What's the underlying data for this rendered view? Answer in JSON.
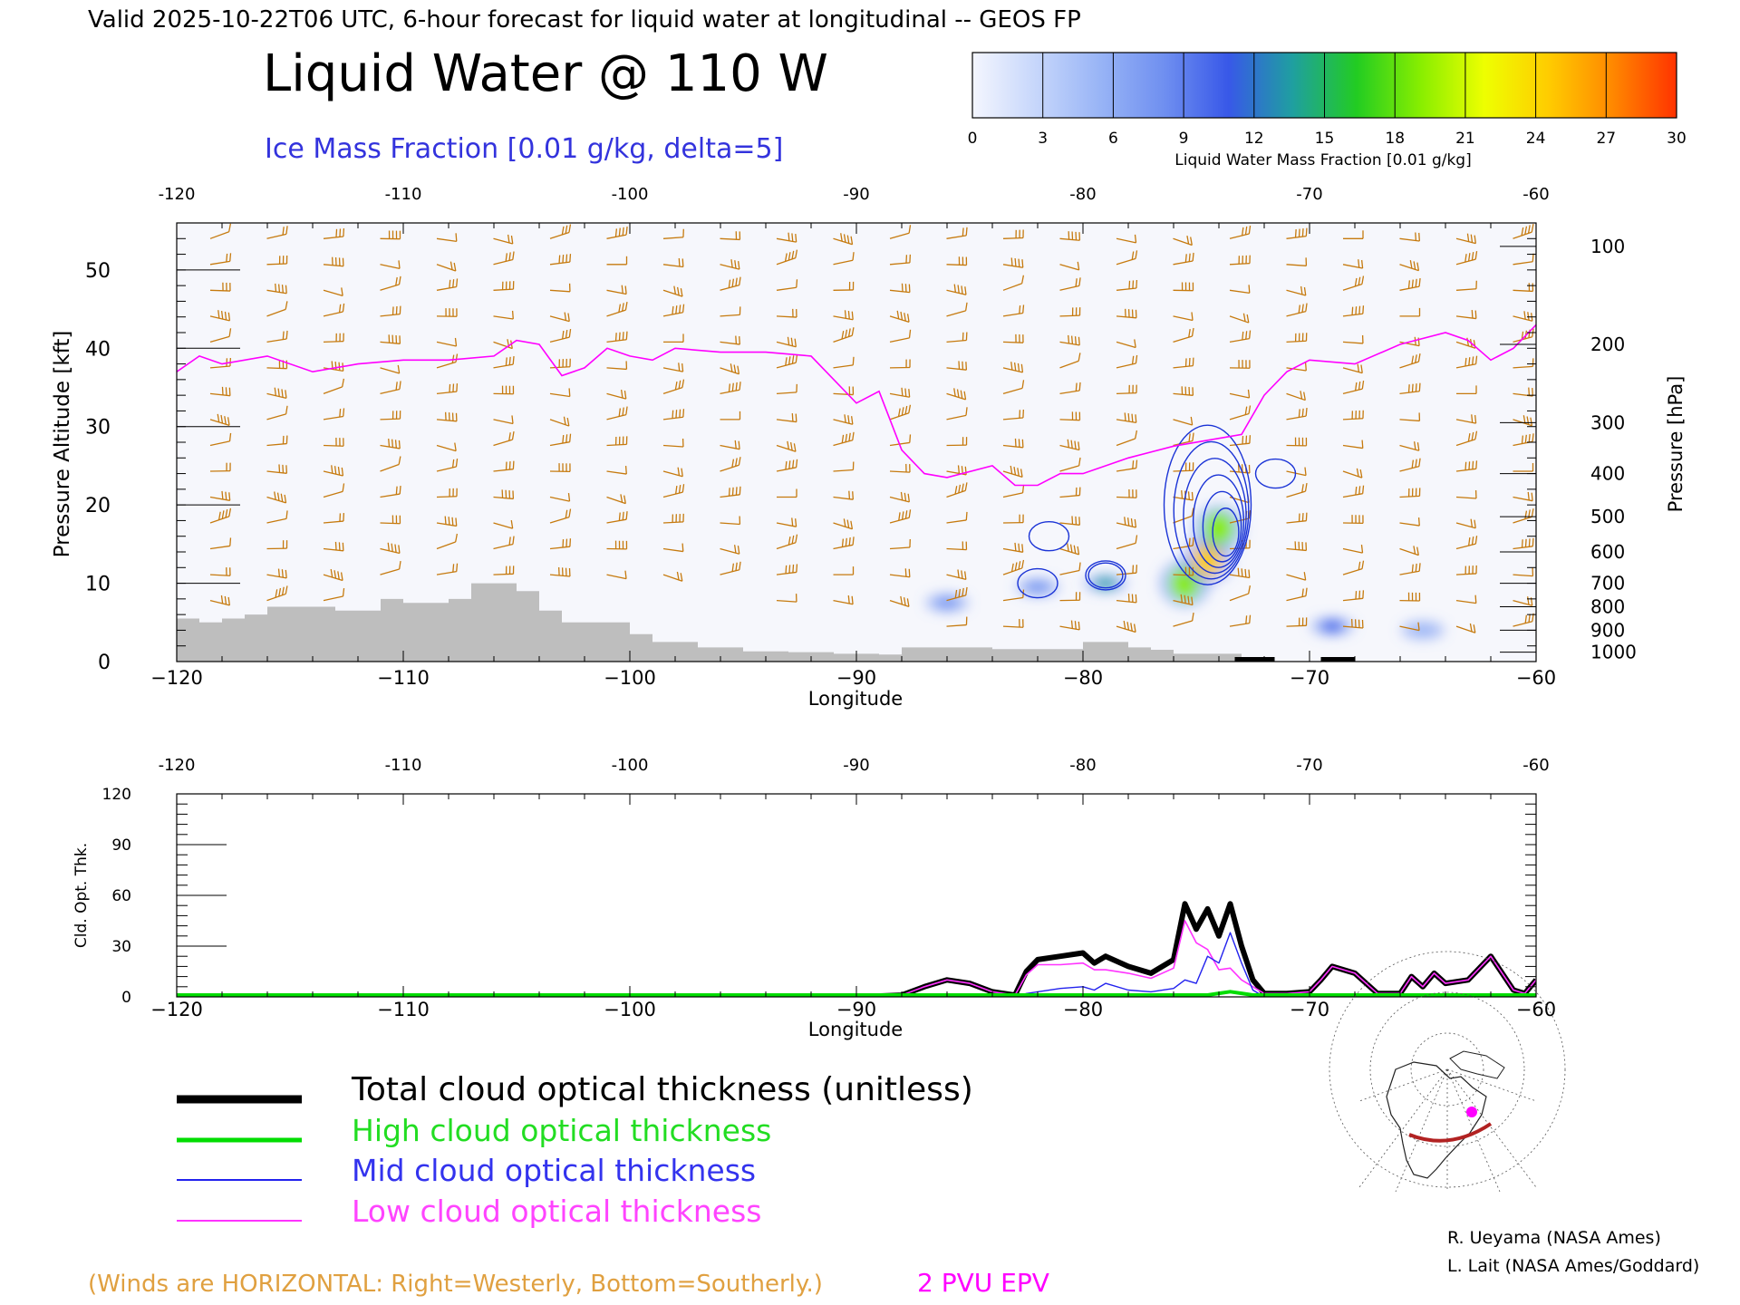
{
  "header": {
    "valid_line": "Valid 2025-10-22T06 UTC, 6-hour forecast for liquid water at longitudinal -- GEOS FP",
    "title": "Liquid Water @ 110 W",
    "subtitle": "Ice Mass Fraction [0.01 g/kg, delta=5]"
  },
  "colorbar": {
    "label": "Liquid Water Mass Fraction [0.01 g/kg]",
    "ticks": [
      "0",
      "3",
      "6",
      "9",
      "12",
      "15",
      "18",
      "21",
      "24",
      "27",
      "30"
    ],
    "colors": [
      "#f4f6fe",
      "#c6d6fb",
      "#98b4f6",
      "#6f8ff0",
      "#3858e8",
      "#1f9fa0",
      "#22cc22",
      "#88ee00",
      "#eeff00",
      "#ffcc00",
      "#ff8800",
      "#ff3300"
    ]
  },
  "colors": {
    "wind_barb": "#c67a0e",
    "pv_line": "#ff00ff",
    "ice_contour": "#1a33d6",
    "terrain": "#bebebe",
    "total": "#000000",
    "high": "#00dd00",
    "mid": "#2222ee",
    "low": "#ff33ff"
  },
  "top_panel": {
    "xticks_top": [
      "-120",
      "-110",
      "-100",
      "-90",
      "-80",
      "-70",
      "-60"
    ],
    "xticks_bottom": [
      "−120",
      "−110",
      "−100",
      "−90",
      "−80",
      "−70",
      "−60"
    ],
    "xlabel": "Longitude",
    "ylabel_left": "Pressure Altitude [kft]",
    "yticks_left": [
      "0",
      "10",
      "20",
      "30",
      "40",
      "50"
    ],
    "ylabel_right": "Pressure [hPa]",
    "yticks_right": [
      "100",
      "200",
      "300",
      "400",
      "500",
      "600",
      "700",
      "800",
      "900",
      "1000"
    ]
  },
  "bottom_panel": {
    "xticks_top": [
      "-120",
      "-110",
      "-100",
      "-90",
      "-80",
      "-70",
      "-60"
    ],
    "xticks_bottom": [
      "−120",
      "−110",
      "−100",
      "−90",
      "−80",
      "−70",
      "−60"
    ],
    "xlabel": "Longitude",
    "ylabel": "Cld. Opt. Thk.",
    "yticks": [
      "0",
      "30",
      "60",
      "90",
      "120"
    ]
  },
  "legend": {
    "total": "Total cloud optical thickness (unitless)",
    "high": "High cloud optical thickness",
    "mid": "Mid cloud optical thickness",
    "low": "Low cloud optical thickness"
  },
  "footer": {
    "winds_note": "(Winds are HORIZONTAL: Right=Westerly, Bottom=Southerly.)",
    "pv_label": "2 PVU EPV",
    "credit1": "R. Ueyama (NASA Ames)",
    "credit2": "L. Lait (NASA Ames/Goddard)"
  },
  "chart_data": [
    {
      "type": "heatmap",
      "xlabel": "Longitude",
      "ylabel": "Pressure Altitude [kft]",
      "xlim": [
        -120,
        -60
      ],
      "ylim": [
        0,
        56
      ],
      "colorbar_range": [
        0,
        30
      ],
      "liquid_water_blobs": [
        {
          "lon": -86,
          "kft": 7.5,
          "value": 8
        },
        {
          "lon": -82,
          "kft": 9.5,
          "value": 8
        },
        {
          "lon": -79,
          "kft": 10,
          "value": 14
        },
        {
          "lon": -75.5,
          "kft": 10,
          "value": 18
        },
        {
          "lon": -74.5,
          "kft": 13,
          "value": 24
        },
        {
          "lon": -74,
          "kft": 17,
          "value": 20
        },
        {
          "lon": -69,
          "kft": 4.5,
          "value": 12
        },
        {
          "lon": -65,
          "kft": 4,
          "value": 6
        }
      ],
      "pv_2pvu_kft": {
        "lon": [
          -120,
          -119,
          -118,
          -116,
          -114,
          -112,
          -110,
          -108,
          -106,
          -105,
          -104,
          -103,
          -102,
          -101,
          -100,
          -99,
          -98,
          -96,
          -94,
          -92,
          -90,
          -89,
          -88,
          -87,
          -86,
          -84,
          -83,
          -82,
          -81,
          -80,
          -78,
          -76,
          -74,
          -73,
          -72,
          -71,
          -70,
          -68,
          -66,
          -64,
          -63,
          -62,
          -61,
          -60
        ],
        "kft": [
          37,
          39,
          38,
          39,
          37,
          38,
          38.5,
          38.5,
          39,
          41,
          40.5,
          36.5,
          37.5,
          40,
          39,
          38.5,
          40,
          39.5,
          39.5,
          39,
          33,
          34.5,
          27,
          24,
          23.5,
          25,
          22.5,
          22.5,
          24,
          24,
          26,
          27.5,
          28.5,
          29,
          34,
          37,
          38.5,
          38,
          40.5,
          42,
          41,
          38.5,
          40,
          43
        ]
      },
      "terrain_kft": {
        "lon": [
          -120,
          -119,
          -118,
          -117,
          -116,
          -114,
          -113,
          -111,
          -110,
          -109,
          -108,
          -107,
          -106,
          -105,
          -104,
          -103,
          -102,
          -100,
          -99,
          -97,
          -95,
          -93,
          -91,
          -89,
          -88,
          -86,
          -84,
          -82,
          -80,
          -78,
          -77,
          -76,
          -74,
          -73,
          -60
        ],
        "kft": [
          5.5,
          5,
          5.5,
          6,
          7,
          7,
          6.5,
          8,
          7.5,
          7.5,
          8,
          10,
          10,
          9,
          6.5,
          5,
          5,
          3.5,
          2.5,
          1.8,
          1.3,
          1.2,
          1,
          0.9,
          1.8,
          1.8,
          1.6,
          1.6,
          2.5,
          1.8,
          1.5,
          1,
          1,
          0,
          0
        ]
      },
      "ice_contours": [
        {
          "lon": -82,
          "kft": 10,
          "levels": [
            5
          ]
        },
        {
          "lon": -81.5,
          "kft": 16,
          "levels": [
            5
          ]
        },
        {
          "lon": -79,
          "kft": 11,
          "levels": [
            5,
            10
          ]
        },
        {
          "lon": -74.5,
          "kft": 20,
          "levels": [
            5,
            10,
            15,
            20,
            25,
            30
          ]
        },
        {
          "lon": -71.5,
          "kft": 24,
          "levels": [
            5
          ]
        }
      ]
    },
    {
      "type": "line",
      "xlabel": "Longitude",
      "ylabel": "Cld. Opt. Thk.",
      "xlim": [
        -120,
        -60
      ],
      "ylim": [
        0,
        120
      ],
      "x": [
        -120,
        -100,
        -90,
        -88,
        -87,
        -86,
        -85,
        -84,
        -83,
        -82.5,
        -82,
        -81,
        -80,
        -79.5,
        -79,
        -78,
        -77,
        -76,
        -75.5,
        -75,
        -74.5,
        -74,
        -73.5,
        -73,
        -72.5,
        -72,
        -71,
        -70,
        -69.5,
        -69,
        -68,
        -67,
        -66,
        -65.5,
        -65,
        -64.5,
        -64,
        -63,
        -62,
        -61,
        -60.5,
        -60
      ],
      "series": [
        {
          "name": "Total cloud optical thickness (unitless)",
          "values": [
            0,
            0,
            0,
            1,
            6,
            10,
            8,
            3,
            1,
            15,
            22,
            24,
            26,
            20,
            24,
            18,
            14,
            22,
            55,
            40,
            52,
            36,
            55,
            30,
            10,
            2,
            2,
            3,
            10,
            18,
            14,
            2,
            2,
            12,
            6,
            14,
            8,
            10,
            24,
            4,
            2,
            10
          ]
        },
        {
          "name": "High cloud optical thickness",
          "values": [
            0,
            0,
            0,
            0,
            0,
            0,
            0,
            0,
            0,
            0,
            0,
            0,
            0,
            0,
            0,
            0,
            0,
            0,
            0,
            0,
            0,
            1,
            2,
            1,
            0,
            0,
            0,
            0,
            0,
            0,
            0,
            0,
            0,
            0,
            0,
            0,
            0,
            0,
            0,
            0,
            0,
            0
          ]
        },
        {
          "name": "Mid cloud optical thickness",
          "values": [
            0,
            0,
            0,
            0,
            0,
            0,
            0,
            0,
            0,
            2,
            3,
            5,
            6,
            4,
            8,
            4,
            3,
            5,
            10,
            8,
            24,
            20,
            38,
            20,
            4,
            0,
            0,
            0,
            0,
            0,
            0,
            0,
            0,
            0,
            0,
            0,
            0,
            0,
            0,
            0,
            0,
            0
          ]
        },
        {
          "name": "Low cloud optical thickness",
          "values": [
            0,
            0,
            0,
            1,
            6,
            10,
            8,
            3,
            1,
            13,
            19,
            19,
            20,
            16,
            16,
            14,
            11,
            17,
            45,
            32,
            28,
            16,
            17,
            10,
            6,
            2,
            2,
            3,
            10,
            18,
            14,
            2,
            2,
            12,
            6,
            14,
            8,
            10,
            24,
            4,
            2,
            10
          ]
        }
      ]
    }
  ]
}
